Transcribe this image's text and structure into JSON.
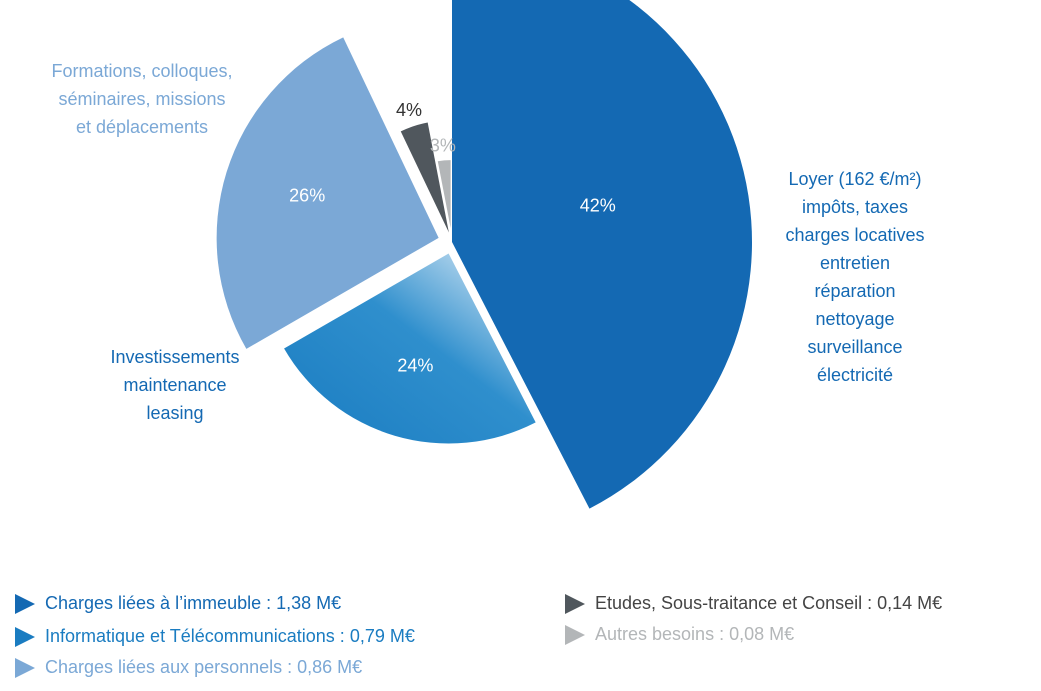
{
  "chart_data": {
    "type": "pie",
    "categories": [
      "Charges liées à l’immeuble : 1,38 M€",
      "Informatique et Télécommunications : 0,79 M€",
      "Charges liées aux personnels : 0,86 M€",
      "Etudes, Sous-traitance et Conseil : 0,14 M€",
      "Autres besoins : 0,08 M€"
    ],
    "values": [
      42,
      24,
      26,
      4,
      3
    ],
    "value_labels": [
      "42%",
      "24%",
      "26%",
      "4%",
      "3%"
    ],
    "colors": [
      "#1469b3",
      "#1a7cc1",
      "#7ba8d6",
      "#50575d",
      "#b3b6b8"
    ],
    "descriptions": [
      [
        "Loyer (162 €/m²)",
        "impôts, taxes",
        "charges locatives",
        "entretien",
        "réparation",
        "nettoyage",
        "surveillance",
        "électricité"
      ],
      [
        "Investissements",
        "maintenance",
        "leasing"
      ],
      [
        "Formations, colloques,",
        "séminaires, missions",
        "et déplacements"
      ],
      null,
      null
    ]
  }
}
